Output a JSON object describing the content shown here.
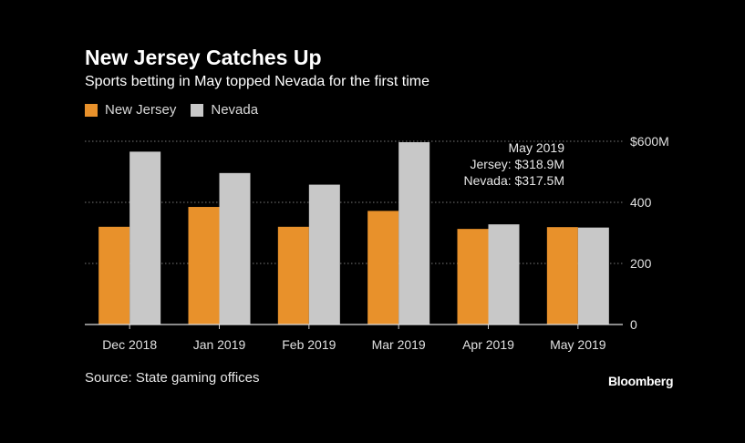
{
  "header": {
    "title": "New Jersey Catches Up",
    "subtitle": "Sports betting in May topped Nevada for the first time"
  },
  "legend": [
    {
      "label": "New Jersey",
      "color": "#E8912B"
    },
    {
      "label": "Nevada",
      "color": "#C8C8C8"
    }
  ],
  "footer": {
    "source": "Source: State gaming offices",
    "brand": "Bloomberg"
  },
  "chart_data": {
    "type": "bar",
    "categories": [
      "Dec 2018",
      "Jan 2019",
      "Feb 2019",
      "Mar 2019",
      "Apr 2019",
      "May 2019"
    ],
    "series": [
      {
        "name": "New Jersey",
        "color": "#E8912B",
        "values": [
          320,
          385,
          320,
          372,
          313,
          318.9
        ]
      },
      {
        "name": "Nevada",
        "color": "#C8C8C8",
        "values": [
          566,
          496,
          458,
          597,
          328,
          317.5
        ]
      }
    ],
    "ylim": [
      0,
      600
    ],
    "yticks": [
      0,
      200,
      400,
      600
    ],
    "ytick_labels": [
      "0",
      "200",
      "400",
      "$600M"
    ],
    "grid": true,
    "annotation": [
      "May 2019",
      "Jersey: $318.9M",
      "Nevada: $317.5M"
    ]
  }
}
